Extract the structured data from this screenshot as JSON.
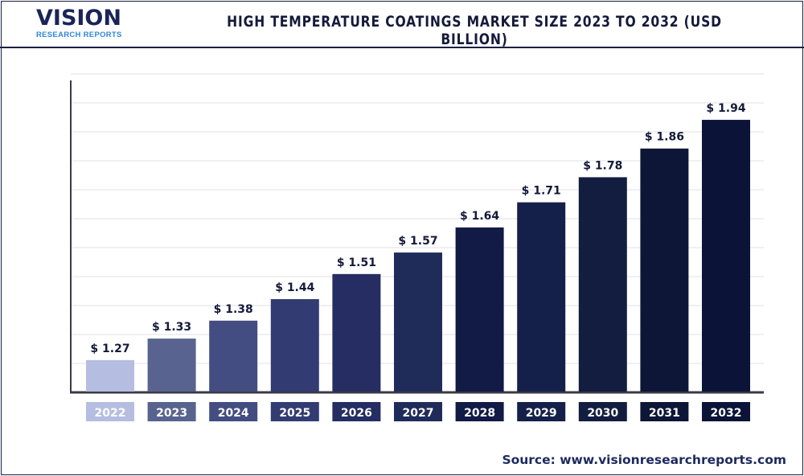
{
  "header": {
    "logo_text": "VISION",
    "logo_subtext": "RESEARCH REPORTS",
    "title": "HIGH TEMPERATURE COATINGS MARKET SIZE 2023 TO 2032 (USD BILLION)"
  },
  "footer": {
    "source": "Source: www.visionresearchreports.com"
  },
  "chart_data": {
    "type": "bar",
    "title": "HIGH TEMPERATURE COATINGS MARKET SIZE 2023 TO 2032 (USD BILLION)",
    "categories": [
      "2022",
      "2023",
      "2024",
      "2025",
      "2026",
      "2027",
      "2028",
      "2029",
      "2030",
      "2031",
      "2032"
    ],
    "values": [
      1.27,
      1.33,
      1.38,
      1.44,
      1.51,
      1.57,
      1.64,
      1.71,
      1.78,
      1.86,
      1.94
    ],
    "data_labels": [
      "$ 1.27",
      "$ 1.33",
      "$ 1.38",
      "$ 1.44",
      "$ 1.51",
      "$ 1.57",
      "$ 1.64",
      "$ 1.71",
      "$ 1.78",
      "$ 1.86",
      "$ 1.94"
    ],
    "colors": [
      "#b5bee0",
      "#58648f",
      "#434d82",
      "#323c72",
      "#252d62",
      "#1f2c5a",
      "#121b46",
      "#15204a",
      "#131d40",
      "#0d1636",
      "#0b1438"
    ],
    "xlabel": "",
    "ylabel": "",
    "ylim": [
      1.18,
      2.05
    ],
    "grid": true,
    "legend": "none"
  }
}
